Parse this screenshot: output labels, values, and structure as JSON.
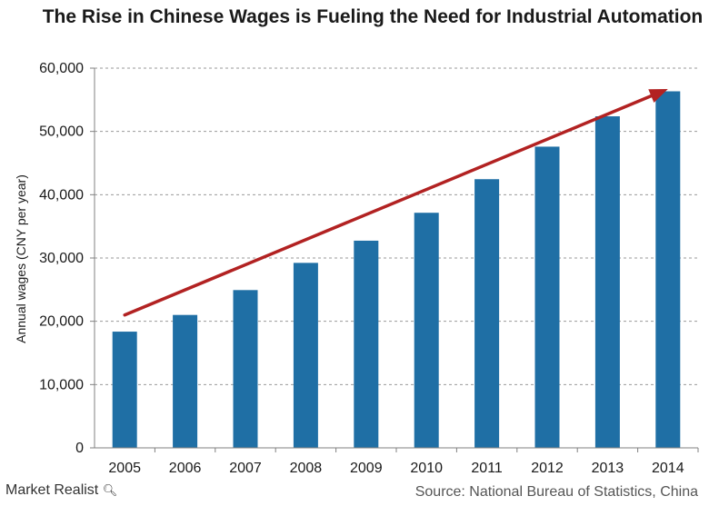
{
  "chart_data": {
    "type": "bar",
    "title": "The Rise in Chinese Wages is Fueling the Need for Industrial Automation",
    "xlabel": "",
    "ylabel": "Annual wages (CNY per year)",
    "categories": [
      "2005",
      "2006",
      "2007",
      "2008",
      "2009",
      "2010",
      "2011",
      "2012",
      "2013",
      "2014"
    ],
    "values": [
      18364,
      21001,
      24932,
      29229,
      32736,
      37147,
      42452,
      47593,
      52388,
      56339
    ],
    "ylim": [
      0,
      60000
    ],
    "yticks": [
      0,
      10000,
      20000,
      30000,
      40000,
      50000,
      60000
    ],
    "ytick_labels": [
      "0",
      "10,000",
      "20,000",
      "30,000",
      "40,000",
      "50,000",
      "60,000"
    ],
    "grid": true,
    "bar_color": "#1f6fa5",
    "trend_arrow": {
      "from_value": 21000,
      "to_value": 56700,
      "color": "#b22222"
    }
  },
  "footer": {
    "brand": "Market Realist",
    "brand_icon": "magnifier-icon",
    "source": "Source: National Bureau of Statistics, China"
  }
}
